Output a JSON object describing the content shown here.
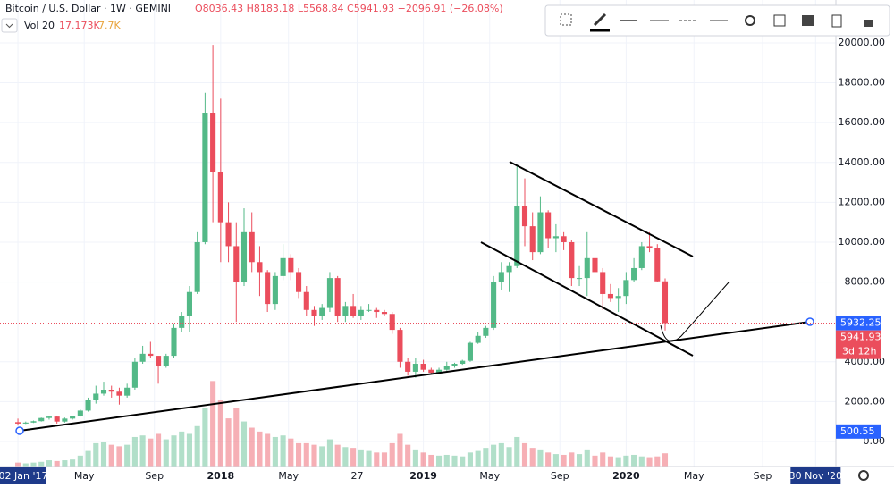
{
  "chart_data": {
    "type": "candlestick",
    "title": "Bitcoin / U.S. Dollar · 1W · GEMINI",
    "ohlc_text": "O8036.43 H8183.18 L5568.84 C5941.93 −2096.91 (−26.08%)",
    "volume_title": "Vol 20",
    "volume_text": [
      "17.173K",
      "7.7K"
    ],
    "up_color": "#53b987",
    "down_color": "#eb4d5c",
    "candles": [
      [
        970,
        1150,
        800,
        900
      ],
      [
        900,
        1000,
        880,
        950
      ],
      [
        950,
        1050,
        930,
        1020
      ],
      [
        1020,
        1200,
        1000,
        1180
      ],
      [
        1180,
        1300,
        1100,
        1250
      ],
      [
        1250,
        1280,
        900,
        1000
      ],
      [
        1000,
        1200,
        950,
        1150
      ],
      [
        1150,
        1300,
        1100,
        1280
      ],
      [
        1280,
        1600,
        1250,
        1550
      ],
      [
        1550,
        2200,
        1500,
        2100
      ],
      [
        2100,
        2800,
        1900,
        2400
      ],
      [
        2400,
        3000,
        2300,
        2600
      ],
      [
        2600,
        2800,
        2200,
        2500
      ],
      [
        2500,
        2700,
        1850,
        2300
      ],
      [
        2300,
        2900,
        2200,
        2700
      ],
      [
        2700,
        4200,
        2600,
        4000
      ],
      [
        4000,
        4800,
        3900,
        4400
      ],
      [
        4400,
        5000,
        4200,
        4300
      ],
      [
        4300,
        4300,
        2900,
        3800
      ],
      [
        3800,
        4400,
        3700,
        4300
      ],
      [
        4300,
        5900,
        4200,
        5700
      ],
      [
        5700,
        6500,
        5500,
        6300
      ],
      [
        6300,
        7800,
        5500,
        7500
      ],
      [
        7500,
        10500,
        7400,
        10000
      ],
      [
        10000,
        17500,
        9900,
        16500
      ],
      [
        16500,
        19900,
        11000,
        13500
      ],
      [
        13500,
        17200,
        9000,
        11000
      ],
      [
        11000,
        12000,
        9000,
        9800
      ],
      [
        9800,
        11000,
        6000,
        8000
      ],
      [
        8000,
        11700,
        7800,
        10500
      ],
      [
        10500,
        11500,
        8500,
        9000
      ],
      [
        9000,
        9800,
        7300,
        8500
      ],
      [
        8500,
        8600,
        6500,
        6900
      ],
      [
        6900,
        8500,
        6600,
        8300
      ],
      [
        8300,
        9900,
        8100,
        9200
      ],
      [
        9200,
        9400,
        8100,
        8500
      ],
      [
        8500,
        8700,
        7200,
        7500
      ],
      [
        7500,
        7800,
        6300,
        6600
      ],
      [
        6600,
        6800,
        5800,
        6300
      ],
      [
        6300,
        6900,
        6100,
        6700
      ],
      [
        6700,
        8500,
        6500,
        8200
      ],
      [
        8200,
        8300,
        6000,
        6300
      ],
      [
        6300,
        7000,
        6000,
        6800
      ],
      [
        6800,
        7400,
        6200,
        6300
      ],
      [
        6300,
        6800,
        6100,
        6600
      ],
      [
        6600,
        6900,
        6500,
        6600
      ],
      [
        6600,
        6700,
        6200,
        6500
      ],
      [
        6500,
        6600,
        6300,
        6400
      ],
      [
        6400,
        6500,
        5400,
        5600
      ],
      [
        5600,
        5700,
        3700,
        4000
      ],
      [
        4000,
        4200,
        3300,
        3500
      ],
      [
        3500,
        4200,
        3200,
        3900
      ],
      [
        3900,
        4100,
        3500,
        3600
      ],
      [
        3600,
        3700,
        3400,
        3450
      ],
      [
        3450,
        3700,
        3400,
        3600
      ],
      [
        3600,
        4000,
        3550,
        3800
      ],
      [
        3800,
        3950,
        3700,
        3900
      ],
      [
        3900,
        4100,
        3850,
        4050
      ],
      [
        4050,
        5000,
        4000,
        4950
      ],
      [
        4950,
        5500,
        4900,
        5300
      ],
      [
        5300,
        5800,
        5200,
        5700
      ],
      [
        5700,
        8300,
        5600,
        8000
      ],
      [
        8000,
        9000,
        7600,
        8500
      ],
      [
        8500,
        9000,
        7500,
        8800
      ],
      [
        8800,
        13800,
        8700,
        11800
      ],
      [
        11800,
        13200,
        9800,
        10800
      ],
      [
        10800,
        11500,
        9100,
        9500
      ],
      [
        9500,
        12300,
        9400,
        11500
      ],
      [
        11500,
        11600,
        9700,
        10200
      ],
      [
        10200,
        10900,
        9500,
        10300
      ],
      [
        10300,
        10500,
        9600,
        10000
      ],
      [
        10000,
        10100,
        7800,
        8200
      ],
      [
        8200,
        8800,
        7800,
        8200
      ],
      [
        8200,
        10500,
        7300,
        9200
      ],
      [
        9200,
        9500,
        8300,
        8500
      ],
      [
        8500,
        8700,
        6600,
        7400
      ],
      [
        7400,
        7900,
        7000,
        7200
      ],
      [
        7200,
        7700,
        6500,
        7300
      ],
      [
        7300,
        8500,
        6900,
        8100
      ],
      [
        8100,
        9200,
        8000,
        8700
      ],
      [
        8700,
        10000,
        8600,
        9800
      ],
      [
        9800,
        10500,
        9500,
        9700
      ],
      [
        9700,
        9900,
        8000,
        8036
      ],
      [
        8036.43,
        8183.18,
        5568.84,
        5941.93
      ]
    ],
    "volume": [
      5,
      4,
      5,
      6,
      8,
      7,
      8,
      9,
      14,
      20,
      30,
      32,
      28,
      26,
      28,
      38,
      40,
      36,
      42,
      35,
      40,
      45,
      42,
      52,
      75,
      110,
      85,
      62,
      75,
      58,
      50,
      45,
      42,
      38,
      40,
      36,
      30,
      30,
      28,
      26,
      35,
      28,
      25,
      24,
      22,
      20,
      18,
      18,
      30,
      42,
      28,
      22,
      18,
      15,
      14,
      15,
      14,
      13,
      18,
      20,
      24,
      28,
      30,
      25,
      38,
      30,
      24,
      22,
      18,
      16,
      15,
      18,
      16,
      22,
      14,
      18,
      13,
      12,
      14,
      15,
      13,
      12,
      13,
      17
    ],
    "volume_ylim": [
      0,
      115
    ],
    "xlim": [
      -2.3,
      104.9
    ],
    "xticks": [
      {
        "value": 0,
        "label": "02 Jan '17"
      },
      {
        "value": 8.5,
        "label": "May"
      },
      {
        "value": 17.5,
        "label": "Sep"
      },
      {
        "value": 26,
        "label": "2018"
      },
      {
        "value": 34.7,
        "label": "May"
      },
      {
        "value": 43.5,
        "label": "27"
      },
      {
        "value": 52,
        "label": "2019"
      },
      {
        "value": 60.5,
        "label": "May"
      },
      {
        "value": 69.5,
        "label": "Sep"
      },
      {
        "value": 78,
        "label": "2020"
      },
      {
        "value": 86.7,
        "label": "May"
      },
      {
        "value": 95.5,
        "label": "Sep"
      },
      {
        "value": 102.3,
        "label": "30 Nov '20"
      }
    ],
    "ylim": [
      -1256,
      22150
    ],
    "yticks": [
      {
        "value": 0,
        "label": "0.00"
      },
      {
        "value": 2000,
        "label": "2000.00"
      },
      {
        "value": 4000,
        "label": "4000.00"
      },
      {
        "value": 8000,
        "label": "8000.00"
      },
      {
        "value": 10000,
        "label": "10000.00"
      },
      {
        "value": 12000,
        "label": "12000.00"
      },
      {
        "value": 14000,
        "label": "14000.00"
      },
      {
        "value": 16000,
        "label": "16000.00"
      },
      {
        "value": 18000,
        "label": "18000.00"
      },
      {
        "value": 20000,
        "label": "20000.00"
      }
    ],
    "grid": true,
    "markers": [
      {
        "value": 5932.25,
        "color": "#2962ff"
      },
      {
        "value": 500.55,
        "color": "#2962ff"
      }
    ],
    "countdown": "3d 12h"
  }
}
